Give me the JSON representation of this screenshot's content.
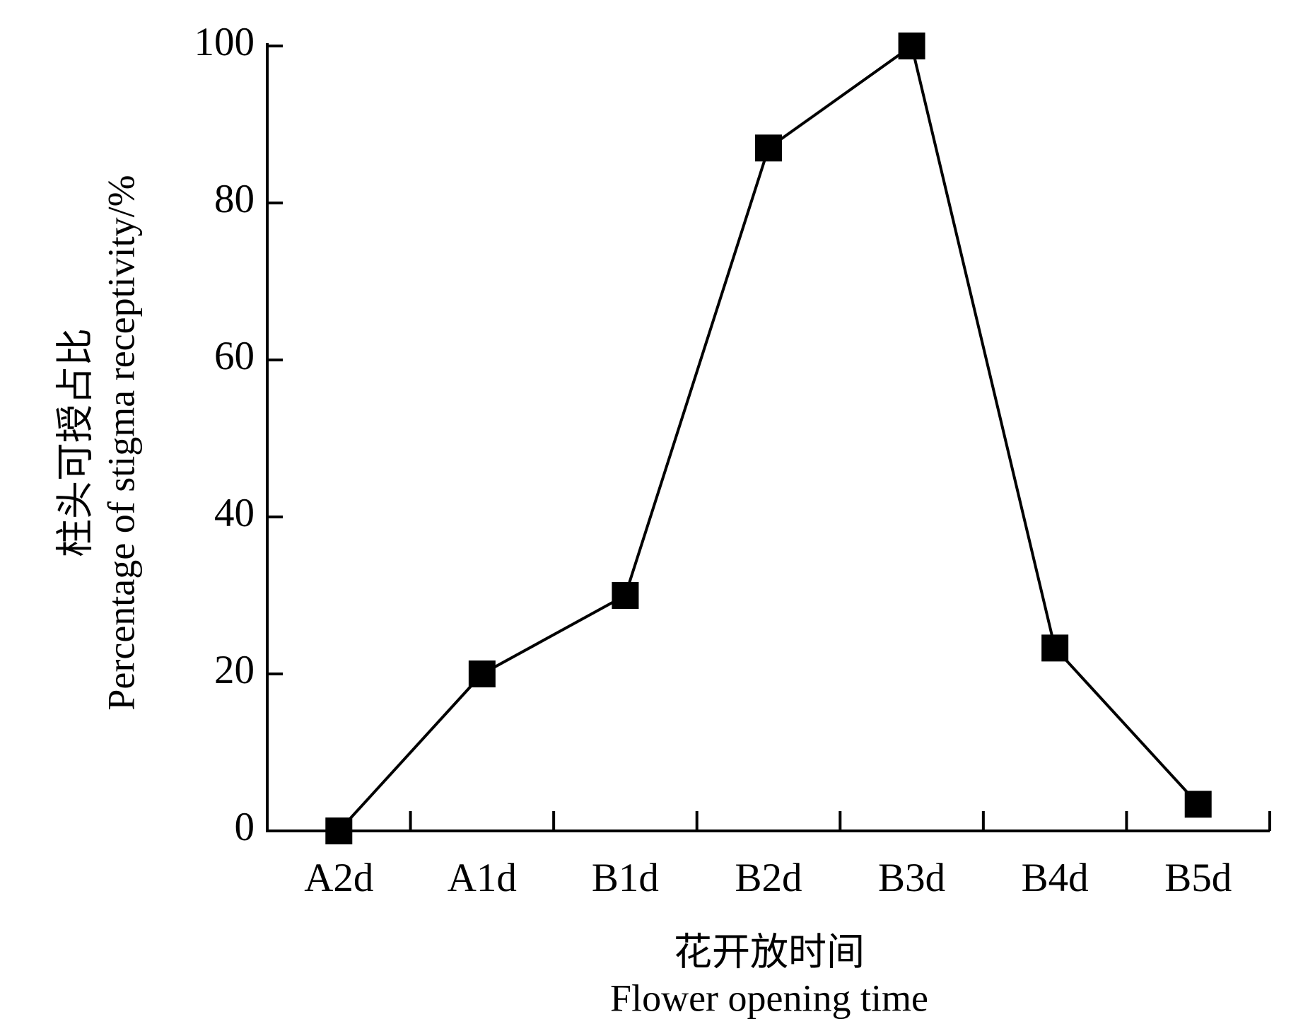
{
  "chart_data": {
    "type": "line",
    "x_label": [
      "花开放时间",
      "Flower opening time"
    ],
    "y_label": [
      "柱头可授占比",
      "Percentage of stigma receptivity/%"
    ],
    "categories": [
      "A2d",
      "A1d",
      "B1d",
      "B2d",
      "B3d",
      "B4d",
      "B5d"
    ],
    "values": [
      0,
      20,
      30,
      87,
      100,
      23.3,
      3.4
    ],
    "color": "#000000",
    "ylim": [
      0,
      100
    ],
    "yticks": [
      0,
      20,
      40,
      60,
      80,
      100
    ],
    "grid": false
  }
}
